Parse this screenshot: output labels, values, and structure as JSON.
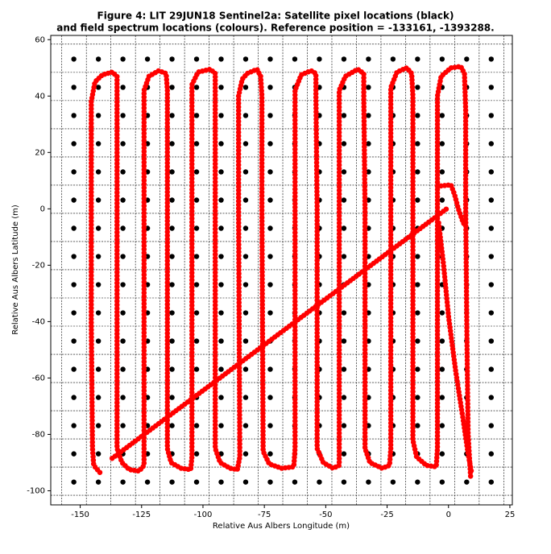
{
  "chart_data": {
    "type": "scatter",
    "title": [
      "Figure 4: LIT 29JUN18  Sentinel2a: Satellite pixel locations (black)",
      "and field spectrum locations (colours). Reference position = -133161, -1393288."
    ],
    "xlabel": "Relative Aus Albers Longitude (m)",
    "ylabel": "Relative Aus Albers Latitude (m)",
    "xlim": [
      -162,
      26
    ],
    "ylim": [
      -105,
      61.5
    ],
    "xticks": [
      -150,
      -125,
      -100,
      -75,
      -50,
      -25,
      0,
      25
    ],
    "yticks": [
      -100,
      -80,
      -60,
      -40,
      -20,
      0,
      20,
      40,
      60
    ],
    "xgrid": [
      -157.5,
      -147.5,
      -137.5,
      -127.5,
      -117.5,
      -107.5,
      -97.5,
      -87.5,
      -77.5,
      -67.5,
      -57.5,
      -47.5,
      -37.5,
      -27.5,
      -17.5,
      -7.5,
      2.5,
      12.5,
      22.5
    ],
    "ygrid": [
      58.4,
      48.4,
      38.4,
      28.4,
      18.4,
      8.4,
      -1.6,
      -11.6,
      -21.6,
      -31.6,
      -41.6,
      -51.6,
      -61.6,
      -71.6,
      -81.6,
      -91.6,
      -101.6
    ],
    "series": [
      {
        "color": "#000000",
        "x": [
          -152.6,
          -142.6,
          -132.6,
          -122.6,
          -112.6,
          -102.6,
          -92.6,
          -82.6,
          -72.6,
          -62.6,
          -52.6,
          -42.6,
          -32.6,
          -22.6,
          -12.6,
          -2.6,
          7.4,
          17.4,
          -152.6,
          -142.6,
          -132.6,
          -122.6,
          -112.6,
          -102.6,
          -92.6,
          -82.6,
          -72.6,
          -62.6,
          -52.6,
          -42.6,
          -32.6,
          -22.6,
          -12.6,
          -2.6,
          7.4,
          17.4,
          -152.6,
          -142.6,
          -132.6,
          -122.6,
          -112.6,
          -102.6,
          -92.6,
          -82.6,
          -72.6,
          -62.6,
          -52.6,
          -42.6,
          -32.6,
          -22.6,
          -12.6,
          -2.6,
          7.4,
          17.4,
          -152.6,
          -142.6,
          -132.6,
          -122.6,
          -112.6,
          -102.6,
          -92.6,
          -82.6,
          -72.6,
          -62.6,
          -52.6,
          -42.6,
          -32.6,
          -22.6,
          -12.6,
          -2.6,
          7.4,
          17.4,
          -152.6,
          -142.6,
          -132.6,
          -122.6,
          -112.6,
          -102.6,
          -92.6,
          -82.6,
          -72.6,
          -62.6,
          -52.6,
          -42.6,
          -32.6,
          -22.6,
          -12.6,
          -2.6,
          7.4,
          17.4,
          -152.6,
          -142.6,
          -132.6,
          -122.6,
          -112.6,
          -102.6,
          -92.6,
          -82.6,
          -72.6,
          -62.6,
          -52.6,
          -42.6,
          -32.6,
          -22.6,
          -12.6,
          -2.6,
          7.4,
          17.4,
          -152.6,
          -142.6,
          -132.6,
          -122.6,
          -112.6,
          -102.6,
          -92.6,
          -82.6,
          -72.6,
          -62.6,
          -52.6,
          -42.6,
          -32.6,
          -22.6,
          -12.6,
          -2.6,
          7.4,
          17.4,
          -152.6,
          -142.6,
          -132.6,
          -122.6,
          -112.6,
          -102.6,
          -92.6,
          -82.6,
          -72.6,
          -62.6,
          -52.6,
          -42.6,
          -32.6,
          -22.6,
          -12.6,
          -2.6,
          7.4,
          17.4,
          -152.6,
          -142.6,
          -132.6,
          -122.6,
          -112.6,
          -102.6,
          -92.6,
          -82.6,
          -72.6,
          -62.6,
          -52.6,
          -42.6,
          -32.6,
          -22.6,
          -12.6,
          -2.6,
          7.4,
          17.4,
          -152.6,
          -142.6,
          -132.6,
          -122.6,
          -112.6,
          -102.6,
          -92.6,
          -82.6,
          -72.6,
          -62.6,
          -52.6,
          -42.6,
          -32.6,
          -22.6,
          -12.6,
          -2.6,
          7.4,
          17.4,
          -152.6,
          -142.6,
          -132.6,
          -122.6,
          -112.6,
          -102.6,
          -92.6,
          -82.6,
          -72.6,
          -62.6,
          -52.6,
          -42.6,
          -32.6,
          -22.6,
          -12.6,
          -2.6,
          7.4,
          17.4,
          -152.6,
          -142.6,
          -132.6,
          -122.6,
          -112.6,
          -102.6,
          -92.6,
          -82.6,
          -72.6,
          -62.6,
          -52.6,
          -42.6,
          -32.6,
          -22.6,
          -12.6,
          -2.6,
          7.4,
          17.4,
          -152.6,
          -142.6,
          -132.6,
          -122.6,
          -112.6,
          -102.6,
          -92.6,
          -82.6,
          -72.6,
          -62.6,
          -52.6,
          -42.6,
          -32.6,
          -22.6,
          -12.6,
          -2.6,
          7.4,
          17.4,
          -152.6,
          -142.6,
          -132.6,
          -122.6,
          -112.6,
          -102.6,
          -92.6,
          -82.6,
          -72.6,
          -62.6,
          -52.6,
          -42.6,
          -32.6,
          -22.6,
          -12.6,
          -2.6,
          7.4,
          17.4,
          -152.6,
          -142.6,
          -132.6,
          -122.6,
          -112.6,
          -102.6,
          -92.6,
          -82.6,
          -72.6,
          -62.6,
          -52.6,
          -42.6,
          -32.6,
          -22.6,
          -12.6,
          -2.6,
          7.4,
          17.4,
          -152.6,
          -142.6,
          -132.6,
          -122.6,
          -112.6,
          -102.6,
          -92.6,
          -82.6,
          -72.6,
          -62.6,
          -52.6,
          -42.6,
          -32.6,
          -22.6,
          -12.6,
          -2.6,
          7.4,
          17.4
        ],
        "y": [
          53.1,
          53.1,
          53.1,
          53.1,
          53.1,
          53.1,
          53.1,
          53.1,
          53.1,
          53.1,
          53.1,
          53.1,
          53.1,
          53.1,
          53.1,
          53.1,
          53.1,
          53.1,
          43.1,
          43.1,
          43.1,
          43.1,
          43.1,
          43.1,
          43.1,
          43.1,
          43.1,
          43.1,
          43.1,
          43.1,
          43.1,
          43.1,
          43.1,
          43.1,
          43.1,
          43.1,
          33.1,
          33.1,
          33.1,
          33.1,
          33.1,
          33.1,
          33.1,
          33.1,
          33.1,
          33.1,
          33.1,
          33.1,
          33.1,
          33.1,
          33.1,
          33.1,
          33.1,
          33.1,
          23.1,
          23.1,
          23.1,
          23.1,
          23.1,
          23.1,
          23.1,
          23.1,
          23.1,
          23.1,
          23.1,
          23.1,
          23.1,
          23.1,
          23.1,
          23.1,
          23.1,
          23.1,
          13.1,
          13.1,
          13.1,
          13.1,
          13.1,
          13.1,
          13.1,
          13.1,
          13.1,
          13.1,
          13.1,
          13.1,
          13.1,
          13.1,
          13.1,
          13.1,
          13.1,
          13.1,
          3.1,
          3.1,
          3.1,
          3.1,
          3.1,
          3.1,
          3.1,
          3.1,
          3.1,
          3.1,
          3.1,
          3.1,
          3.1,
          3.1,
          3.1,
          3.1,
          3.1,
          3.1,
          -6.9,
          -6.9,
          -6.9,
          -6.9,
          -6.9,
          -6.9,
          -6.9,
          -6.9,
          -6.9,
          -6.9,
          -6.9,
          -6.9,
          -6.9,
          -6.9,
          -6.9,
          -6.9,
          -6.9,
          -6.9,
          -16.9,
          -16.9,
          -16.9,
          -16.9,
          -16.9,
          -16.9,
          -16.9,
          -16.9,
          -16.9,
          -16.9,
          -16.9,
          -16.9,
          -16.9,
          -16.9,
          -16.9,
          -16.9,
          -16.9,
          -16.9,
          -26.9,
          -26.9,
          -26.9,
          -26.9,
          -26.9,
          -26.9,
          -26.9,
          -26.9,
          -26.9,
          -26.9,
          -26.9,
          -26.9,
          -26.9,
          -26.9,
          -26.9,
          -26.9,
          -26.9,
          -26.9,
          -36.9,
          -36.9,
          -36.9,
          -36.9,
          -36.9,
          -36.9,
          -36.9,
          -36.9,
          -36.9,
          -36.9,
          -36.9,
          -36.9,
          -36.9,
          -36.9,
          -36.9,
          -36.9,
          -36.9,
          -36.9,
          -46.9,
          -46.9,
          -46.9,
          -46.9,
          -46.9,
          -46.9,
          -46.9,
          -46.9,
          -46.9,
          -46.9,
          -46.9,
          -46.9,
          -46.9,
          -46.9,
          -46.9,
          -46.9,
          -46.9,
          -46.9,
          -56.9,
          -56.9,
          -56.9,
          -56.9,
          -56.9,
          -56.9,
          -56.9,
          -56.9,
          -56.9,
          -56.9,
          -56.9,
          -56.9,
          -56.9,
          -56.9,
          -56.9,
          -56.9,
          -56.9,
          -56.9,
          -66.9,
          -66.9,
          -66.9,
          -66.9,
          -66.9,
          -66.9,
          -66.9,
          -66.9,
          -66.9,
          -66.9,
          -66.9,
          -66.9,
          -66.9,
          -66.9,
          -66.9,
          -66.9,
          -66.9,
          -66.9,
          -76.9,
          -76.9,
          -76.9,
          -76.9,
          -76.9,
          -76.9,
          -76.9,
          -76.9,
          -76.9,
          -76.9,
          -76.9,
          -76.9,
          -76.9,
          -76.9,
          -76.9,
          -76.9,
          -76.9,
          -76.9,
          -86.9,
          -86.9,
          -86.9,
          -86.9,
          -86.9,
          -86.9,
          -86.9,
          -86.9,
          -86.9,
          -86.9,
          -86.9,
          -86.9,
          -86.9,
          -86.9,
          -86.9,
          -86.9,
          -86.9,
          -86.9,
          -96.9,
          -96.9,
          -96.9,
          -96.9,
          -96.9,
          -96.9,
          -96.9,
          -96.9,
          -96.9,
          -96.9,
          -96.9,
          -96.9,
          -96.9,
          -96.9,
          -96.9,
          -96.9,
          -96.9,
          -96.9
        ]
      },
      {
        "color": "#ff0000",
        "x": [
          -142,
          -144.5,
          -145,
          -145.5,
          -145.5,
          -145.5,
          -144,
          -141,
          -137,
          -135,
          -135,
          -135,
          -135,
          -135,
          -133,
          -130,
          -126,
          -124,
          -124,
          -124,
          -124,
          -122,
          -118,
          -115,
          -114.5,
          -114.5,
          -114.5,
          -113,
          -109,
          -105,
          -104.5,
          -104.5,
          -104.5,
          -102,
          -97,
          -95,
          -95,
          -95,
          -95,
          -93,
          -89,
          -86,
          -85,
          -85.5,
          -85.5,
          -84,
          -82,
          -78,
          -76.5,
          -76,
          -76,
          -75.5,
          -73,
          -68,
          -63,
          -62.5,
          -62.5,
          -62.5,
          -60,
          -56,
          -54,
          -54,
          -53.5,
          -53.5,
          -51,
          -47,
          -44.5,
          -44.5,
          -44.5,
          -44.5,
          -42,
          -37,
          -34.5,
          -34.5,
          -34,
          -34,
          -32,
          -27,
          -24,
          -23.5,
          -23.5,
          -23.5,
          -21,
          -17,
          -15,
          -14.5,
          -14.5,
          -14.5,
          -13,
          -9,
          -5,
          -4.5,
          -4.5,
          -4.5,
          -4.5,
          -3,
          1,
          5,
          6.5,
          7,
          7,
          7.5,
          8,
          9,
          null,
          -137,
          0,
          null,
          -4.5,
          1,
          2.5,
          4,
          6,
          7,
          null,
          -4,
          -2,
          0,
          3,
          6,
          8,
          9.5
        ],
        "y": [
          -93.5,
          -91,
          -85,
          -40,
          0,
          38,
          45,
          47.5,
          48.5,
          47,
          40,
          0,
          -40,
          -85,
          -90,
          -92.5,
          -93,
          -91,
          -85,
          0,
          42,
          47,
          49,
          48,
          42,
          0,
          -85,
          -90,
          -92,
          -92.5,
          -88,
          0,
          44,
          48.5,
          49.5,
          48,
          42,
          0,
          -85,
          -90,
          -92,
          -92.5,
          -88,
          0,
          40,
          46,
          48,
          49.5,
          47,
          40,
          0,
          -86,
          -90.5,
          -92,
          -91.5,
          -85,
          -5,
          42,
          47.5,
          49,
          48,
          40,
          0,
          -85,
          -90,
          -92,
          -91,
          -85,
          0,
          42,
          47,
          49.5,
          48,
          40,
          0,
          -85,
          -90,
          -92,
          -91,
          -85,
          0,
          43,
          48.5,
          50,
          48,
          40,
          0,
          -82,
          -88,
          -91,
          -91.5,
          -85,
          -50,
          0,
          40,
          47,
          50,
          50.5,
          48,
          35,
          0,
          -45,
          -80,
          -95,
          null,
          -88.5,
          0.5,
          null,
          8,
          8.5,
          5,
          0,
          -5,
          -6,
          null,
          -5,
          -20,
          -38,
          -58,
          -75,
          -87,
          -94
        ]
      }
    ]
  }
}
